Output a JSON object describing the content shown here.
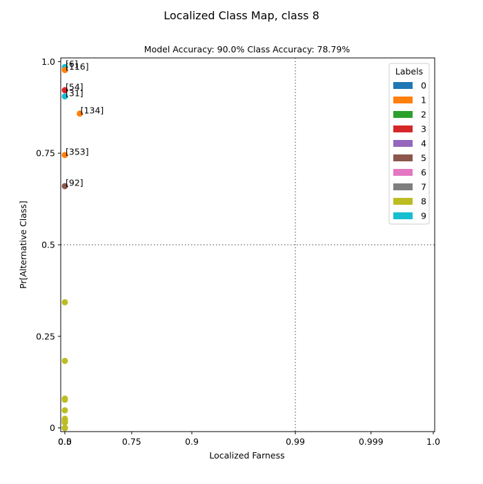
{
  "chart_data": {
    "type": "scatter",
    "suptitle": "Localized Class Map, class 8",
    "title": "Model Accuracy: 90.0% Class Accuracy: 78.79%",
    "xlabel": "Localized Farness",
    "ylabel": "Pr[Alternative Class]",
    "x_scale": "quantile-warped (inverse normal CDF)",
    "x_ticks": [
      {
        "value": 0.0,
        "label": "0.0"
      },
      {
        "value": 0.5,
        "label": "0.5"
      },
      {
        "value": 0.75,
        "label": "0.75"
      },
      {
        "value": 0.9,
        "label": "0.9"
      },
      {
        "value": 0.99,
        "label": "0.99"
      },
      {
        "value": 0.999,
        "label": "0.999"
      },
      {
        "value": 1.0,
        "label": "1.0"
      }
    ],
    "y_ticks": [
      {
        "value": 0.0,
        "label": "0"
      },
      {
        "value": 0.25,
        "label": "0.25"
      },
      {
        "value": 0.5,
        "label": "0.5"
      },
      {
        "value": 0.75,
        "label": "0.75"
      },
      {
        "value": 1.0,
        "label": "1.0"
      }
    ],
    "ylim": [
      -0.01,
      1.01
    ],
    "reference_lines": {
      "x": 0.99,
      "y": 0.5,
      "style": "dotted"
    },
    "legend": {
      "title": "Labels",
      "placement": "top-right",
      "entries": [
        {
          "label": "0",
          "color": "#1f77b4"
        },
        {
          "label": "1",
          "color": "#ff7f0e"
        },
        {
          "label": "2",
          "color": "#2ca02c"
        },
        {
          "label": "3",
          "color": "#d62728"
        },
        {
          "label": "4",
          "color": "#9467bd"
        },
        {
          "label": "5",
          "color": "#8c564b"
        },
        {
          "label": "6",
          "color": "#e377c2"
        },
        {
          "label": "7",
          "color": "#7f7f7f"
        },
        {
          "label": "8",
          "color": "#bcbd22"
        },
        {
          "label": "9",
          "color": "#17becf"
        }
      ]
    },
    "points": [
      {
        "x": 0.02,
        "y": 0.985,
        "cls": "9",
        "label": "[6]"
      },
      {
        "x": 0.43,
        "y": 0.977,
        "cls": "1",
        "label": "[116]"
      },
      {
        "x": 0.05,
        "y": 0.922,
        "cls": "3",
        "label": "[54]"
      },
      {
        "x": 0.08,
        "y": 0.905,
        "cls": "9",
        "label": "[31]"
      },
      {
        "x": 0.56,
        "y": 0.858,
        "cls": "1",
        "label": "[134]"
      },
      {
        "x": 0.28,
        "y": 0.745,
        "cls": "1",
        "label": "[353]"
      },
      {
        "x": 0.0,
        "y": 0.66,
        "cls": "5",
        "label": "[92]"
      },
      {
        "x": 0.08,
        "y": 0.343,
        "cls": "8"
      },
      {
        "x": 0.003,
        "y": 0.183,
        "cls": "8"
      },
      {
        "x": 0.0,
        "y": 0.08,
        "cls": "8"
      },
      {
        "x": 0.033,
        "y": 0.077,
        "cls": "8"
      },
      {
        "x": 0.0,
        "y": 0.048,
        "cls": "8"
      },
      {
        "x": 0.05,
        "y": 0.025,
        "cls": "8"
      },
      {
        "x": 0.05,
        "y": 0.015,
        "cls": "8"
      },
      {
        "x": 0.09,
        "y": 0.02,
        "cls": "8"
      },
      {
        "x": 0.12,
        "y": 0.016,
        "cls": "8"
      },
      {
        "x": 0.0,
        "y": 0.0,
        "cls": "8"
      },
      {
        "x": 0.006,
        "y": 0.0,
        "cls": "8"
      },
      {
        "x": 0.012,
        "y": 0.0,
        "cls": "8"
      },
      {
        "x": 0.025,
        "y": 0.0,
        "cls": "8"
      },
      {
        "x": 0.045,
        "y": 0.0,
        "cls": "8"
      },
      {
        "x": 0.06,
        "y": 0.0,
        "cls": "8"
      },
      {
        "x": 0.075,
        "y": 0.0,
        "cls": "8"
      },
      {
        "x": 0.1,
        "y": 0.0,
        "cls": "8"
      },
      {
        "x": 0.17,
        "y": 0.0,
        "cls": "8"
      },
      {
        "x": 0.41,
        "y": 0.0,
        "cls": "8"
      }
    ]
  }
}
